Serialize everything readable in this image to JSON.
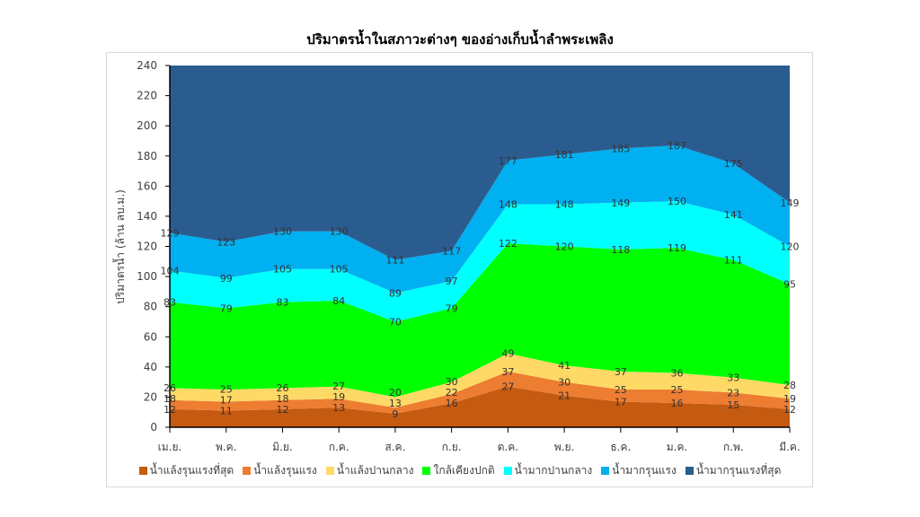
{
  "chart_data": {
    "type": "area",
    "stacked": true,
    "title": "ปริมาตรน้ำในสภาวะต่างๆ ของอ่างเก็บน้ำลำพระเพลิง",
    "xlabel": "",
    "ylabel": "ปริมาตรน้ำ (ล้าน ลบ.ม.)",
    "ylim": [
      0,
      240
    ],
    "yticks": [
      0,
      20,
      40,
      60,
      80,
      100,
      120,
      140,
      160,
      180,
      200,
      220,
      240
    ],
    "categories": [
      "เม.ย.",
      "พ.ค.",
      "มิ.ย.",
      "ก.ค.",
      "ส.ค.",
      "ก.ย.",
      "ต.ค.",
      "พ.ย.",
      "ธ.ค.",
      "ม.ค.",
      "ก.พ.",
      "มี.ค."
    ],
    "legend_position": "bottom",
    "series_note": "values are upper boundary levels of each zone (cumulative), as labeled",
    "series": [
      {
        "name": "น้ำแล้งรุนแรงที่สุด",
        "color": "#C55A11",
        "values": [
          12,
          11,
          12,
          13,
          9,
          16,
          27,
          21,
          17,
          16,
          15,
          12
        ]
      },
      {
        "name": "น้ำแล้งรุนแรง",
        "color": "#ED7D31",
        "values": [
          18,
          17,
          18,
          19,
          13,
          22,
          37,
          30,
          25,
          25,
          23,
          19
        ]
      },
      {
        "name": "น้ำแล้งปานกลาง",
        "color": "#FFD966",
        "values": [
          26,
          25,
          26,
          27,
          20,
          30,
          49,
          41,
          37,
          36,
          33,
          28
        ]
      },
      {
        "name": "ใกล้เคียงปกติ",
        "color": "#00FF00",
        "values": [
          83,
          79,
          83,
          84,
          70,
          79,
          122,
          120,
          118,
          119,
          111,
          95
        ]
      },
      {
        "name": "น้ำมากปานกลาง",
        "color": "#00FFFF",
        "values": [
          104,
          99,
          105,
          105,
          89,
          97,
          148,
          148,
          149,
          150,
          141,
          120
        ]
      },
      {
        "name": "น้ำมากรุนแรง",
        "color": "#00B0F0",
        "values": [
          129,
          123,
          130,
          130,
          111,
          117,
          177,
          181,
          185,
          187,
          175,
          149
        ]
      },
      {
        "name": "น้ำมากรุนแรงที่สุด",
        "color": "#2B5C8F",
        "values": [
          240,
          240,
          240,
          240,
          240,
          240,
          240,
          240,
          240,
          240,
          240,
          240
        ],
        "labels_shown": false
      }
    ]
  }
}
